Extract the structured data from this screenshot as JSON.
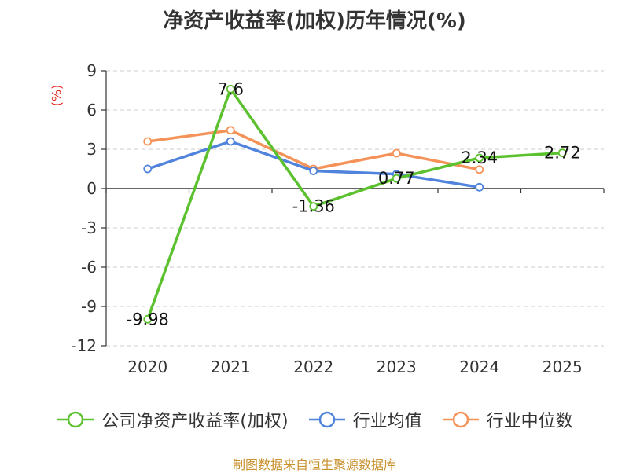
{
  "chart_data": {
    "type": "line",
    "title": "净资产收益率(加权)历年情况(%)",
    "ylabel": "(%)",
    "ylim": [
      -12,
      9
    ],
    "yticks": [
      9,
      6,
      3,
      0,
      -3,
      -6,
      -9,
      -12
    ],
    "categories": [
      "2020",
      "2021",
      "2022",
      "2023",
      "2024",
      "2025"
    ],
    "grid": true,
    "legend_position": "bottom",
    "series": [
      {
        "name": "公司净资产收益率(加权)",
        "color": "#5cc12e",
        "values": [
          -9.98,
          7.6,
          -1.36,
          0.77,
          2.34,
          2.72
        ],
        "labels": [
          "-9.98",
          "7.6",
          "-1.36",
          "0.77",
          "2.34",
          "2.72"
        ]
      },
      {
        "name": "行业均值",
        "color": "#4f83dc",
        "values": [
          1.5,
          3.6,
          1.35,
          1.1,
          0.1,
          null
        ]
      },
      {
        "name": "行业中位数",
        "color": "#f59257",
        "values": [
          3.6,
          4.45,
          1.5,
          2.7,
          1.45,
          null
        ]
      }
    ]
  },
  "source": "制图数据来自恒生聚源数据库"
}
